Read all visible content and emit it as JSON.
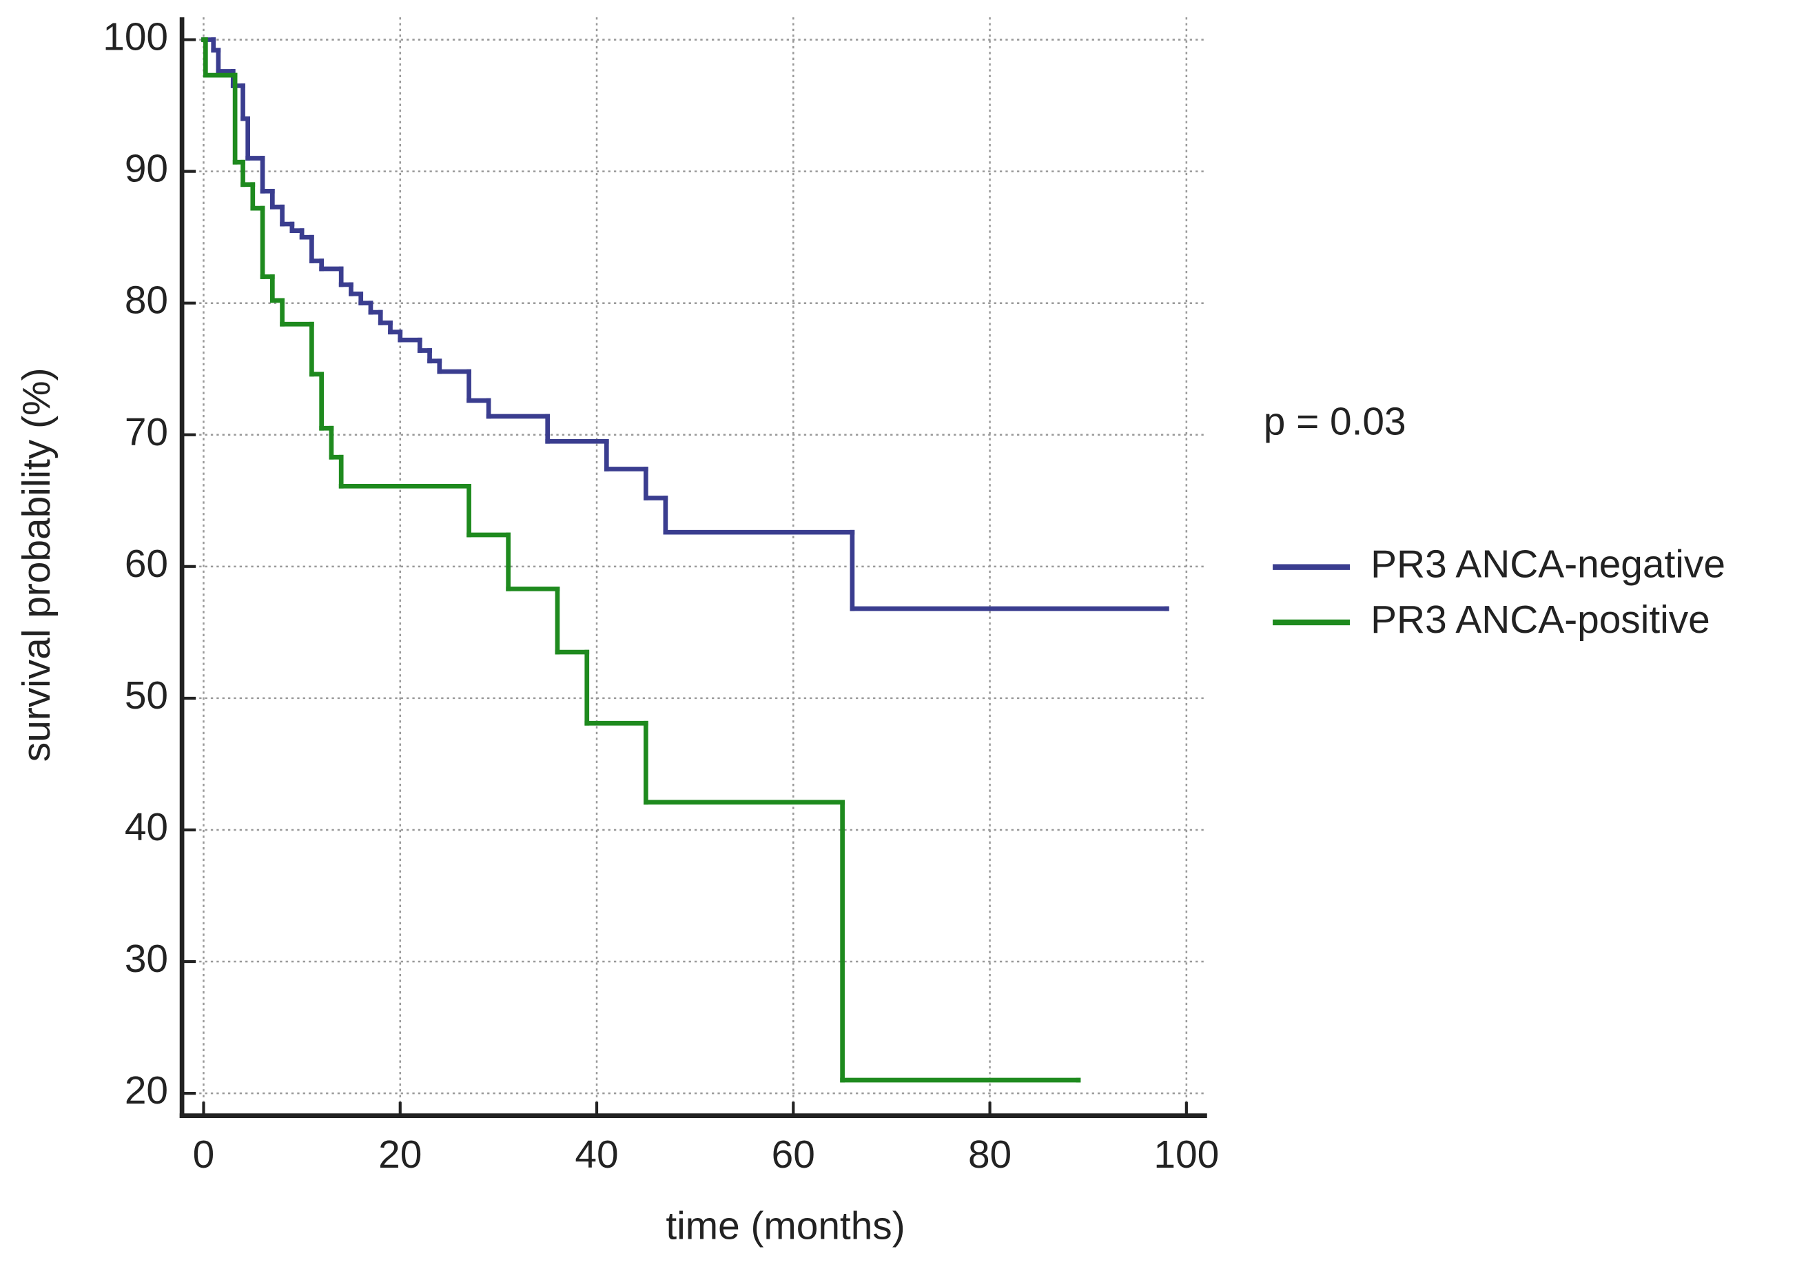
{
  "chart_data": {
    "type": "step",
    "xlabel": "time (months)",
    "ylabel": "survival probability (%)",
    "annotation": "p = 0.03",
    "xlim": [
      -2.2,
      102.1
    ],
    "ylim": [
      18.3,
      101.7
    ],
    "xticks": [
      0,
      20,
      40,
      60,
      80,
      100
    ],
    "yticks": [
      20,
      30,
      40,
      50,
      60,
      70,
      80,
      90,
      100
    ],
    "grid": true,
    "legend": "right",
    "series": [
      {
        "name": "PR3 ANCA-negative",
        "color": "#3a3d8f",
        "x": [
          0,
          1,
          1.5,
          3,
          4,
          4.5,
          6,
          7,
          8,
          9,
          10,
          11,
          12,
          14,
          15,
          16,
          17,
          18,
          19,
          20,
          22,
          23,
          24,
          27,
          29,
          35,
          41,
          45,
          47,
          66,
          98
        ],
        "values": [
          100,
          99.2,
          97.6,
          96.5,
          94,
          91,
          88.5,
          87.3,
          86,
          85.5,
          85,
          83.2,
          82.6,
          81.4,
          80.7,
          80,
          79.3,
          78.5,
          77.8,
          77.2,
          76.4,
          75.6,
          74.8,
          72.6,
          71.4,
          69.5,
          67.4,
          65.2,
          62.6,
          56.8,
          56.8
        ]
      },
      {
        "name": "PR3 ANCA-positive",
        "color": "#1e8a1e",
        "x": [
          0,
          0.2,
          3.2,
          4,
          5,
          6,
          7,
          8,
          11,
          12,
          13,
          14,
          27,
          31,
          36,
          39,
          45,
          65,
          89
        ],
        "values": [
          100,
          97.3,
          90.7,
          89,
          87.2,
          82,
          80.2,
          78.4,
          74.6,
          70.5,
          68.3,
          66.1,
          62.4,
          58.3,
          53.5,
          48.1,
          42.1,
          21,
          21
        ]
      }
    ]
  }
}
